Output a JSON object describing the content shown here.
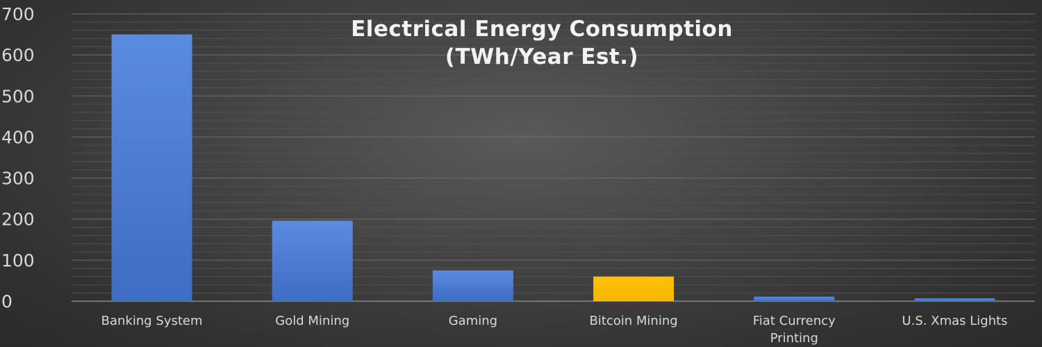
{
  "chart_data": {
    "type": "bar",
    "title": [
      "Electrical Energy Consumption",
      "(TWh/Year Est.)"
    ],
    "xlabel": "",
    "ylabel": "",
    "ylim": [
      0,
      700
    ],
    "yticks": [
      0,
      100,
      200,
      300,
      400,
      500,
      600,
      700
    ],
    "grid": true,
    "legend": "none",
    "categories": [
      [
        "Banking System"
      ],
      [
        "Gold Mining"
      ],
      [
        "Gaming"
      ],
      [
        "Bitcoin Mining"
      ],
      [
        "Fiat Currency",
        "Printing"
      ],
      [
        "U.S. Xmas Lights"
      ]
    ],
    "values": [
      650,
      196,
      75,
      60,
      11,
      7
    ],
    "colors": [
      "#4f7fd6",
      "#4f7fd6",
      "#4f7fd6",
      "#ffc000",
      "#4f7fd6",
      "#4f7fd6"
    ],
    "background": "#3a3a3a"
  }
}
